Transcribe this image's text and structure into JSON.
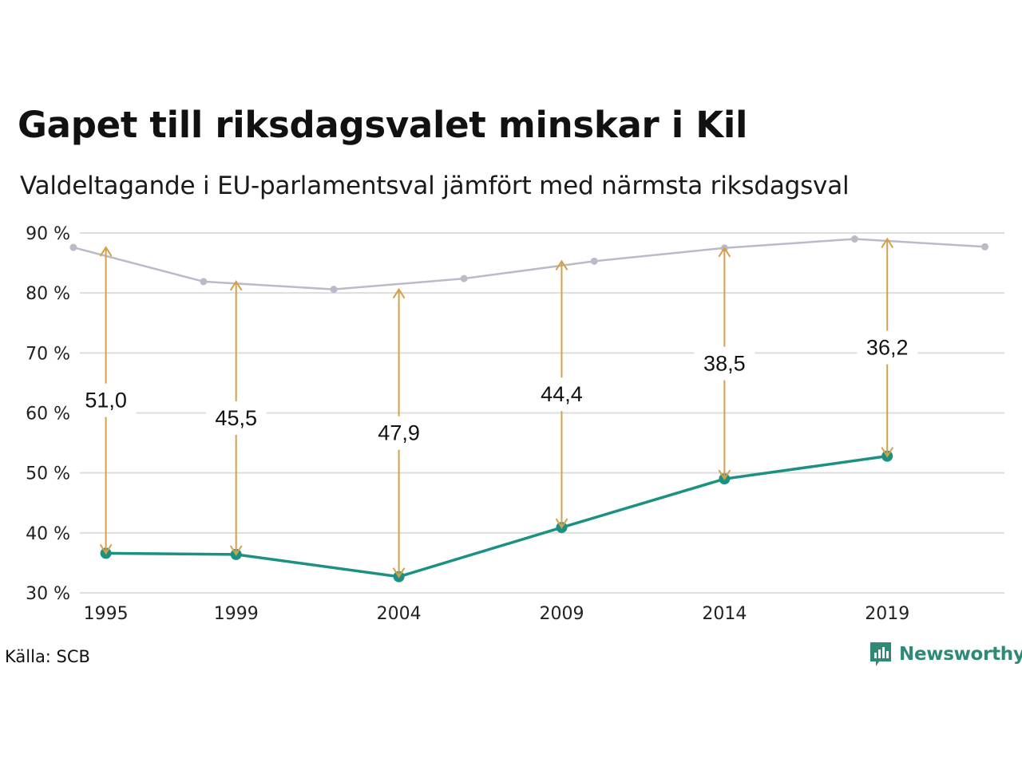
{
  "title": "Gapet till riksdagsvalet minskar i Kil",
  "subtitle": "Valdeltagande i EU-parlamentsval jämfört med närmsta riksdagsval",
  "source": "Källa: SCB",
  "brand": {
    "name": "Newsworthy",
    "icon": "newsworthy-logo-icon",
    "color": "#2e8a77"
  },
  "chart_data": {
    "type": "line",
    "ylim": [
      30,
      90
    ],
    "xlim": [
      1994.2,
      2022.6
    ],
    "y_ticks": [
      30,
      40,
      50,
      60,
      70,
      80,
      90
    ],
    "y_tick_labels": [
      "30 %",
      "40 %",
      "50 %",
      "60 %",
      "70 %",
      "80 %",
      "90 %"
    ],
    "x_ticks": [
      1995,
      1999,
      2004,
      2009,
      2014,
      2019
    ],
    "x_tick_labels": [
      "1995",
      "1999",
      "2004",
      "2009",
      "2014",
      "2019"
    ],
    "grid": true,
    "colors": {
      "riksdag": "#bcb9c9",
      "eu": "#1a9183",
      "arrow": "#d4a04a",
      "grid": "#dddddd"
    },
    "series": [
      {
        "key": "riksdag",
        "x": [
          1994,
          1998,
          2002,
          2006,
          2010,
          2014,
          2018,
          2022
        ],
        "y": [
          87.6,
          81.9,
          80.6,
          82.4,
          85.3,
          87.5,
          89.0,
          87.7
        ]
      },
      {
        "key": "eu",
        "x": [
          1995,
          1999,
          2004,
          2009,
          2014,
          2019
        ],
        "y": [
          36.6,
          36.4,
          32.7,
          40.9,
          49.0,
          52.8
        ]
      }
    ],
    "gaps": [
      {
        "x": 1995,
        "from": 36.6,
        "to": 87.6,
        "label": "51,0"
      },
      {
        "x": 1999,
        "from": 36.4,
        "to": 81.9,
        "label": "45,5"
      },
      {
        "x": 2004,
        "from": 32.7,
        "to": 80.6,
        "label": "47,9"
      },
      {
        "x": 2009,
        "from": 40.9,
        "to": 85.3,
        "label": "44,4"
      },
      {
        "x": 2014,
        "from": 49.0,
        "to": 87.5,
        "label": "38,5"
      },
      {
        "x": 2019,
        "from": 52.8,
        "to": 89.0,
        "label": "36,2"
      }
    ]
  }
}
